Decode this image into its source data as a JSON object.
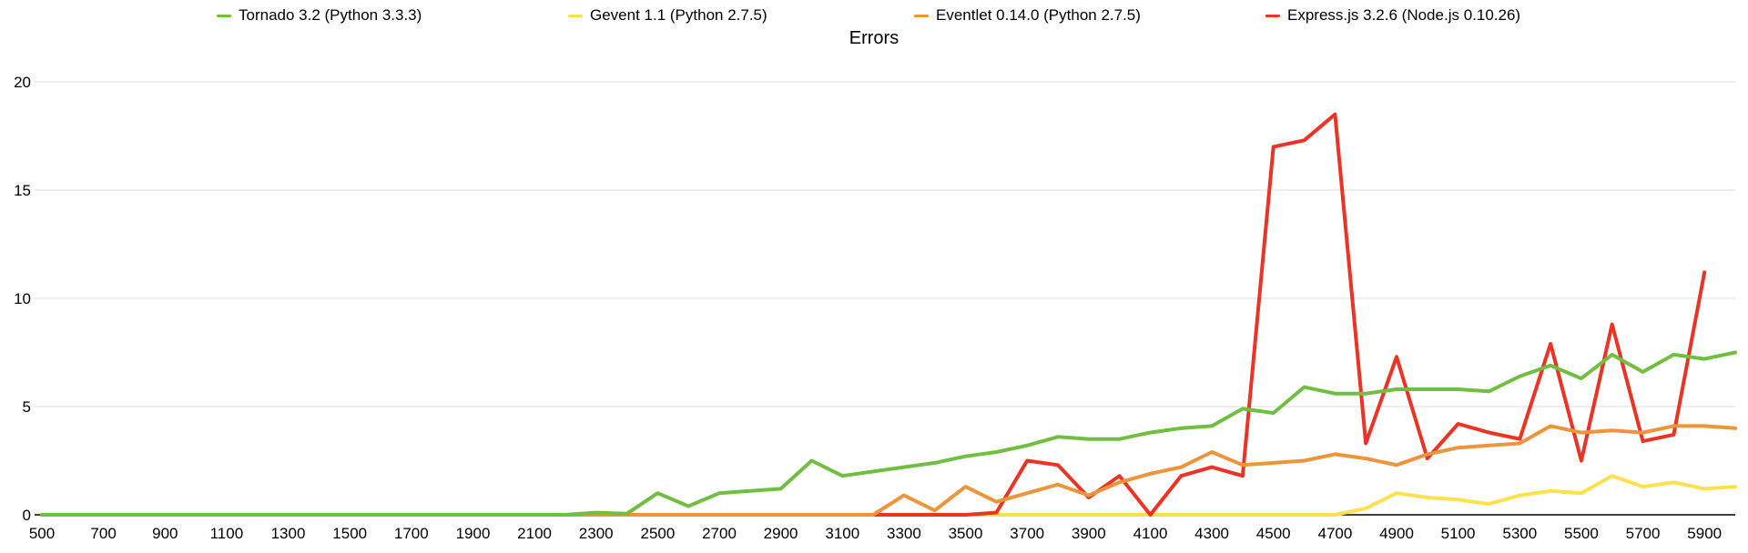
{
  "chart_data": {
    "type": "line",
    "title": "Errors",
    "xlabel": "",
    "ylabel": "",
    "xlim": [
      500,
      6000
    ],
    "ylim": [
      0,
      20
    ],
    "grid": true,
    "legend_position": "top",
    "grid_color": "#e4e4e4",
    "axis_color": "#000000",
    "xticks": [
      500,
      700,
      900,
      1100,
      1300,
      1500,
      1700,
      1900,
      2100,
      2300,
      2500,
      2700,
      2900,
      3100,
      3300,
      3500,
      3700,
      3900,
      4100,
      4300,
      4500,
      4700,
      4900,
      5100,
      5300,
      5500,
      5700,
      5900
    ],
    "yticks": [
      0,
      5,
      10,
      15,
      20
    ],
    "x": [
      500,
      600,
      700,
      800,
      900,
      1000,
      1100,
      1200,
      1300,
      1400,
      1500,
      1600,
      1700,
      1800,
      1900,
      2000,
      2100,
      2200,
      2300,
      2400,
      2500,
      2600,
      2700,
      2800,
      2900,
      3000,
      3100,
      3200,
      3300,
      3400,
      3500,
      3600,
      3700,
      3800,
      3900,
      4000,
      4100,
      4200,
      4300,
      4400,
      4500,
      4600,
      4700,
      4800,
      4900,
      5000,
      5100,
      5200,
      5300,
      5400,
      5500,
      5600,
      5700,
      5800,
      5900,
      6000
    ],
    "series": [
      {
        "name": "Tornado 3.2 (Python 3.3.3)",
        "color": "#70bf41",
        "values": [
          0,
          0,
          0,
          0,
          0,
          0,
          0,
          0,
          0,
          0,
          0,
          0,
          0,
          0,
          0,
          0,
          0,
          0,
          0.1,
          0.05,
          1.0,
          0.4,
          1.0,
          1.1,
          1.2,
          2.5,
          1.8,
          2.0,
          2.2,
          2.4,
          2.7,
          2.9,
          3.2,
          3.6,
          3.5,
          3.5,
          3.8,
          4.0,
          4.1,
          4.9,
          4.7,
          5.9,
          5.6,
          5.6,
          5.8,
          5.8,
          5.8,
          5.7,
          6.4,
          6.9,
          6.3,
          7.4,
          6.6,
          7.4,
          7.2,
          7.5
        ]
      },
      {
        "name": "Gevent 1.1 (Python 2.7.5)",
        "color": "#ffe14e",
        "values": [
          0,
          0,
          0,
          0,
          0,
          0,
          0,
          0,
          0,
          0,
          0,
          0,
          0,
          0,
          0,
          0,
          0,
          0,
          0,
          0,
          0,
          0,
          0,
          0,
          0,
          0,
          0,
          0,
          0,
          0,
          0,
          0,
          0,
          0,
          0,
          0,
          0,
          0,
          0,
          0,
          0,
          0,
          0,
          0.3,
          1.0,
          0.8,
          0.7,
          0.5,
          0.9,
          1.1,
          1.0,
          1.8,
          1.3,
          1.5,
          1.2,
          1.3
        ]
      },
      {
        "name": "Eventlet 0.14.0 (Python 2.7.5)",
        "color": "#ef9439",
        "values": [
          0,
          0,
          0,
          0,
          0,
          0,
          0,
          0,
          0,
          0,
          0,
          0,
          0,
          0,
          0,
          0,
          0,
          0,
          0,
          0,
          0,
          0,
          0,
          0,
          0,
          0,
          0,
          0,
          0.9,
          0.2,
          1.3,
          0.6,
          1.0,
          1.4,
          0.9,
          1.5,
          1.9,
          2.2,
          2.9,
          2.3,
          2.4,
          2.5,
          2.8,
          2.6,
          2.3,
          2.8,
          3.1,
          3.2,
          3.3,
          4.1,
          3.8,
          3.9,
          3.8,
          4.1,
          4.1,
          4.0
        ]
      },
      {
        "name": "Express.js 3.2.6 (Node.js 0.10.26)",
        "color": "#ee3224",
        "values": [
          0,
          0,
          0,
          0,
          0,
          0,
          0,
          0,
          0,
          0,
          0,
          0,
          0,
          0,
          0,
          0,
          0,
          0,
          0,
          0,
          0,
          0,
          0,
          0,
          0,
          0,
          0,
          0,
          0,
          0,
          0,
          0.1,
          2.5,
          2.3,
          0.8,
          1.8,
          0.0,
          1.8,
          2.2,
          1.8,
          17.0,
          17.3,
          18.5,
          3.3,
          7.3,
          2.6,
          4.2,
          3.8,
          3.5,
          7.9,
          2.5,
          8.8,
          3.4,
          3.7,
          11.2,
          null
        ]
      }
    ]
  }
}
